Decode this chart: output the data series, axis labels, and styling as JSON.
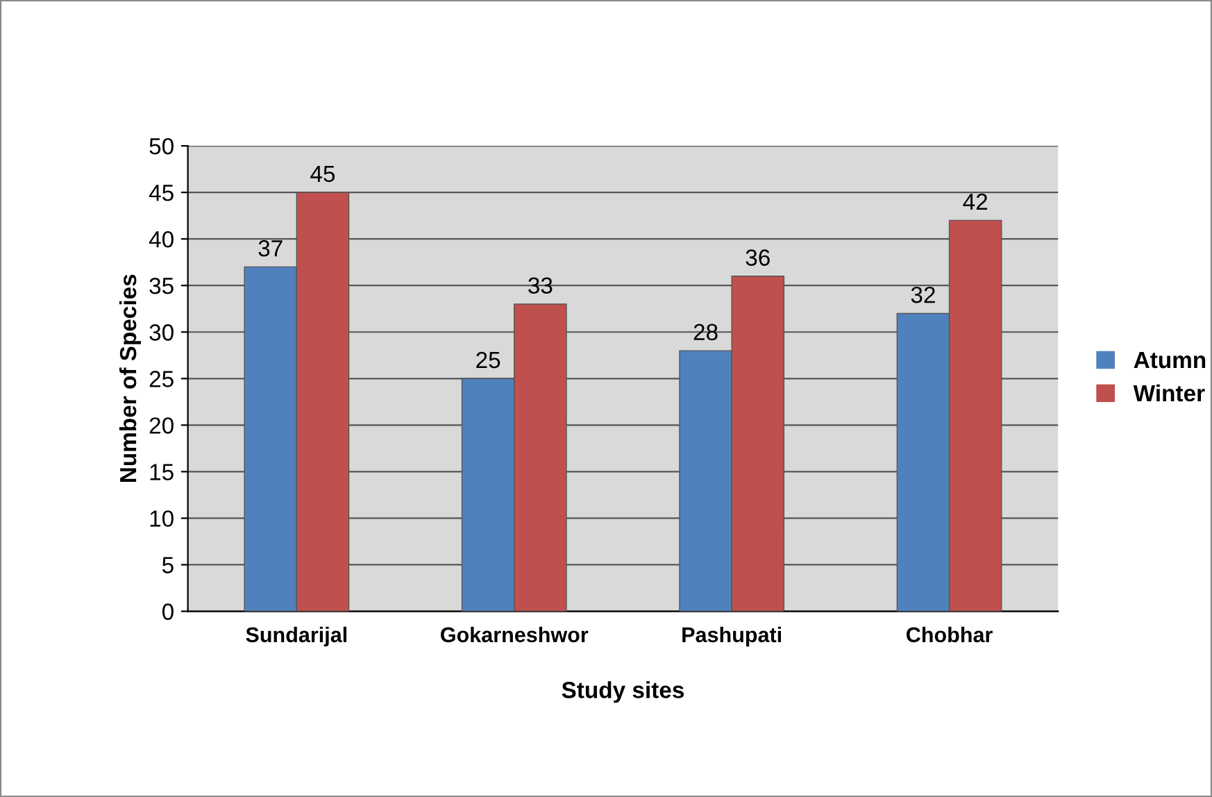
{
  "chart_data": {
    "type": "bar",
    "xlabel": "Study sites",
    "ylabel": "Number of Species",
    "categories": [
      "Sundarijal",
      "Gokarneshwor",
      "Pashupati",
      "Chobhar"
    ],
    "series": [
      {
        "name": "Atumn",
        "color": "#4f81bd",
        "values": [
          37,
          25,
          28,
          32
        ]
      },
      {
        "name": "Winter",
        "color": "#c0504d",
        "values": [
          45,
          33,
          36,
          42
        ]
      }
    ],
    "ylim": [
      0,
      50
    ],
    "yticks": [
      0,
      5,
      10,
      15,
      20,
      25,
      30,
      35,
      40,
      45,
      50
    ],
    "grid": "y",
    "legend": "right",
    "data_labels": true
  }
}
